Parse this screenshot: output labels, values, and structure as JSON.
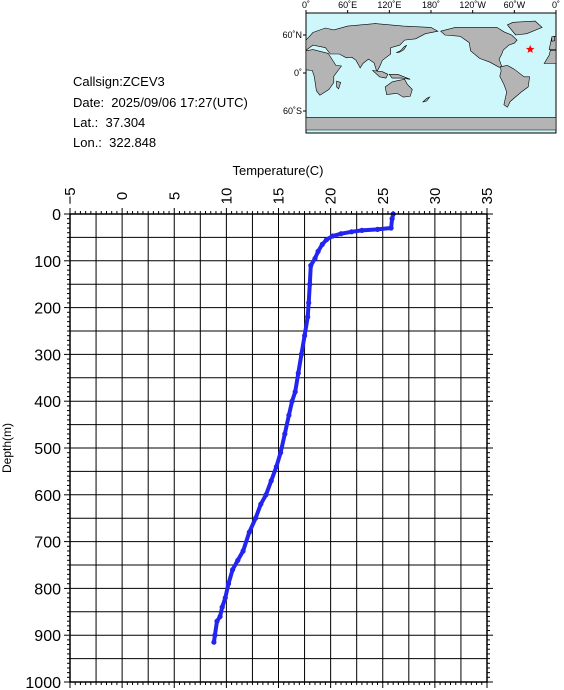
{
  "info": {
    "callsign": "Callsign:ZCEV3",
    "date": "Date:  2025/09/06 17:27(UTC)",
    "lat": "Lat.:  37.304",
    "lon": "Lon.:  322.848"
  },
  "map": {
    "top_lon_labels": [
      "0˚",
      "60˚E",
      "120˚E",
      "180˚",
      "120˚W",
      "60˚W",
      "0˚"
    ],
    "lat_labels": [
      "60˚N",
      "0˚",
      "60˚S"
    ],
    "ocean_color": "#cdf7fb",
    "land_color": "#b4b4b4",
    "marker_color": "#ff0000",
    "marker": {
      "lon": 322.848,
      "lat": 37.304
    }
  },
  "chart_data": {
    "type": "line",
    "xlabel": "Temperature(C)",
    "ylabel": "Depth(m)",
    "xlim": [
      -5,
      35
    ],
    "ylim": [
      1000,
      0
    ],
    "x_ticks": [
      -5,
      0,
      5,
      10,
      15,
      20,
      25,
      30,
      35
    ],
    "y_ticks": [
      0,
      100,
      200,
      300,
      400,
      500,
      600,
      700,
      800,
      900,
      1000
    ],
    "grid": true,
    "line_color": "#2424f0",
    "series": [
      {
        "x": [
          26.0,
          25.9,
          25.8,
          24.5,
          23.0,
          22.0,
          21.0,
          20.2,
          19.6,
          19.2,
          18.8,
          18.5,
          18.1,
          18.0,
          17.9,
          17.8,
          17.5,
          17.2,
          16.9,
          16.6,
          16.3,
          16.0,
          15.6,
          15.2,
          14.8,
          14.3,
          13.8,
          13.3,
          12.8,
          12.2,
          11.6,
          11.1,
          10.6,
          10.2,
          9.9,
          9.6,
          9.4,
          9.1,
          8.9,
          8.8
        ],
        "y": [
          0,
          10,
          30,
          33,
          35,
          38,
          42,
          47,
          55,
          65,
          80,
          95,
          110,
          150,
          190,
          220,
          260,
          300,
          340,
          380,
          400,
          430,
          470,
          510,
          540,
          570,
          600,
          620,
          650,
          680,
          720,
          740,
          760,
          790,
          820,
          840,
          860,
          870,
          900,
          915
        ]
      }
    ]
  }
}
